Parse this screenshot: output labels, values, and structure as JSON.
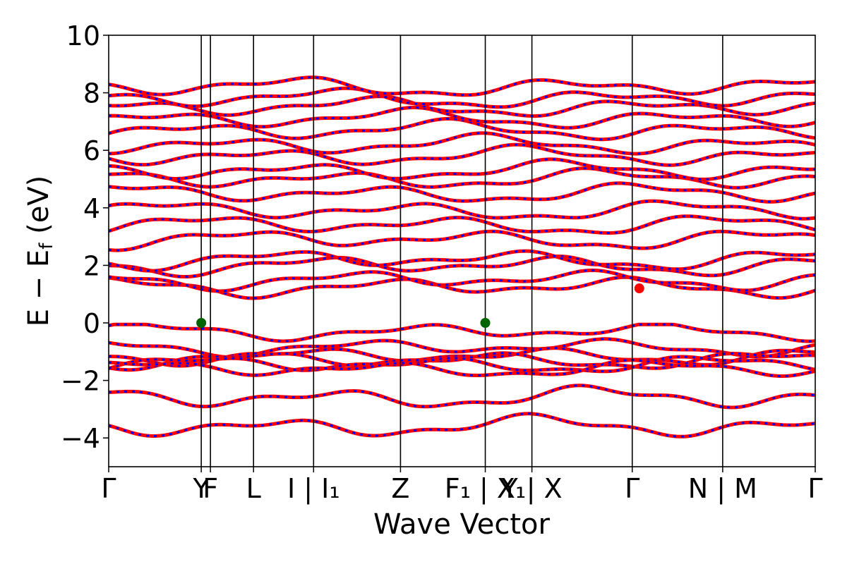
{
  "chart_data": {
    "type": "line",
    "title": "",
    "xlabel": "Wave Vector",
    "ylabel": "E − E_f (eV)",
    "ylabel_main": "E − E",
    "ylabel_sub": "f",
    "ylabel_unit": " (eV)",
    "ylim": [
      -5,
      10
    ],
    "yticks": [
      -4,
      -2,
      0,
      2,
      4,
      6,
      8,
      10
    ],
    "ytick_labels": [
      "−4",
      "−2",
      "0",
      "2",
      "4",
      "6",
      "8",
      "10"
    ],
    "grid": false,
    "x_range": [
      0,
      1
    ],
    "kpoints": [
      {
        "label": "Γ",
        "x": 0.0
      },
      {
        "label": "Y",
        "x": 0.131
      },
      {
        "label": "F",
        "x": 0.144
      },
      {
        "label": "L",
        "x": 0.205
      },
      {
        "label": "I | I₁",
        "x": 0.29
      },
      {
        "label": "Z",
        "x": 0.413
      },
      {
        "label": "F₁ | X₁",
        "x": 0.533
      },
      {
        "label": "Y | X",
        "x": 0.599
      },
      {
        "label": "Γ",
        "x": 0.741
      },
      {
        "label": "N | M",
        "x": 0.869
      },
      {
        "label": "Γ",
        "x": 1.0
      }
    ],
    "vertical_lines_x": [
      0.131,
      0.144,
      0.205,
      0.29,
      0.413,
      0.533,
      0.599,
      0.741,
      0.869
    ],
    "series_colors": {
      "spin_up": "#ff0000",
      "spin_down": "#0000ff"
    },
    "vbm_marker_color": "#006400",
    "cbm_marker_color": "#ff0000",
    "vbm_markers": [
      {
        "x": 0.131,
        "y": 0.0
      },
      {
        "x": 0.533,
        "y": 0.0
      }
    ],
    "cbm_markers": [
      {
        "x": 0.751,
        "y": 1.2
      }
    ],
    "valence_band_energies_at_gamma": [
      -0.3,
      -0.85,
      -1.15,
      -1.3,
      -1.45,
      -1.6,
      -2.6,
      -3.6
    ],
    "conduction_band_energies_at_gamma": [
      1.25,
      1.5,
      2.0,
      2.2,
      2.9,
      3.4,
      3.9,
      4.5,
      5.0,
      5.3,
      5.8,
      6.2,
      6.7,
      7.1,
      7.5,
      7.8,
      8.2
    ]
  }
}
